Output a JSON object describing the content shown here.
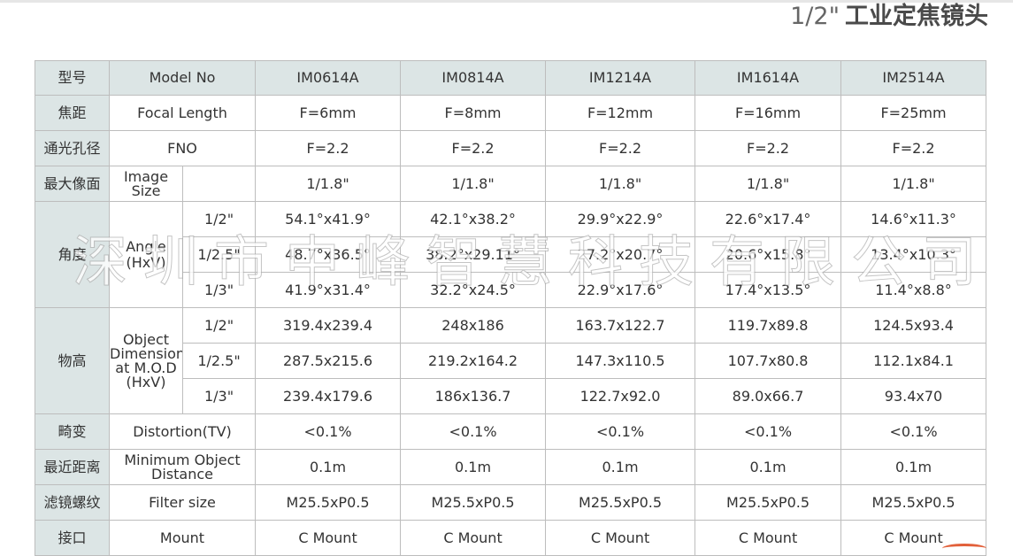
{
  "title": {
    "fraction": "1/2\"",
    "text": "工业定焦镜头"
  },
  "watermark": "深圳市中峰智慧科技有限公司",
  "header": {
    "zh": "型号",
    "en": "Model No",
    "models": [
      "IM0614A",
      "IM0814A",
      "IM1214A",
      "IM1614A",
      "IM2514A"
    ]
  },
  "focal": {
    "zh": "焦距",
    "en": "Focal Length",
    "values": [
      "F=6mm",
      "F=8mm",
      "F=12mm",
      "F=16mm",
      "F=25mm"
    ]
  },
  "fno": {
    "zh": "通光孔径",
    "en": "FNO",
    "values": [
      "F=2.2",
      "F=2.2",
      "F=2.2",
      "F=2.2",
      "F=2.2"
    ]
  },
  "image": {
    "zh": "最大像面",
    "en": "Image Size",
    "values": [
      "1/1.8\"",
      "1/1.8\"",
      "1/1.8\"",
      "1/1.8\"",
      "1/1.8\""
    ]
  },
  "angle": {
    "zh": "角度",
    "en": "Angle (HxV)",
    "rows": [
      {
        "size": "1/2\"",
        "values": [
          "54.1°x41.9°",
          "42.1°x38.2°",
          "29.9°x22.9°",
          "22.6°x17.4°",
          "14.6°x11.3°"
        ]
      },
      {
        "size": "1/2.5\"",
        "values": [
          "48.7°x36.5°",
          "38.2°x29.11°",
          "27.2°x20.7°",
          "20.6°x15.8°",
          "13.4°x10.3°"
        ]
      },
      {
        "size": "1/3\"",
        "values": [
          "41.9°x31.4°",
          "32.2°x24.5°",
          "22.9°x17.6°",
          "17.4°x13.5°",
          "11.4°x8.8°"
        ]
      }
    ]
  },
  "object": {
    "zh": "物高",
    "en": "Object Dimension at M.O.D (HxV)",
    "rows": [
      {
        "size": "1/2\"",
        "values": [
          "319.4x239.4",
          "248x186",
          "163.7x122.7",
          "119.7x89.8",
          "124.5x93.4"
        ]
      },
      {
        "size": "1/2.5\"",
        "values": [
          "287.5x215.6",
          "219.2x164.2",
          "147.3x110.5",
          "107.7x80.8",
          "112.1x84.1"
        ]
      },
      {
        "size": "1/3\"",
        "values": [
          "239.4x179.6",
          "186x136.7",
          "122.7x92.0",
          "89.0x66.7",
          "93.4x70"
        ]
      }
    ]
  },
  "distortion": {
    "zh": "畸变",
    "en": "Distortion(TV)",
    "values": [
      "<0.1%",
      "<0.1%",
      "<0.1%",
      "<0.1%",
      "<0.1%"
    ]
  },
  "mod": {
    "zh": "最近距离",
    "en": "Minimum Object Distance",
    "values": [
      "0.1m",
      "0.1m",
      "0.1m",
      "0.1m",
      "0.1m"
    ]
  },
  "filter": {
    "zh": "滤镜螺纹",
    "en": "Filter size",
    "values": [
      "M25.5xP0.5",
      "M25.5xP0.5",
      "M25.5xP0.5",
      "M25.5xP0.5",
      "M25.5xP0.5"
    ]
  },
  "mount": {
    "zh": "接口",
    "en": "Mount",
    "values": [
      "C Mount",
      "C Mount",
      "C Mount",
      "C Mount",
      "C Mount"
    ]
  }
}
